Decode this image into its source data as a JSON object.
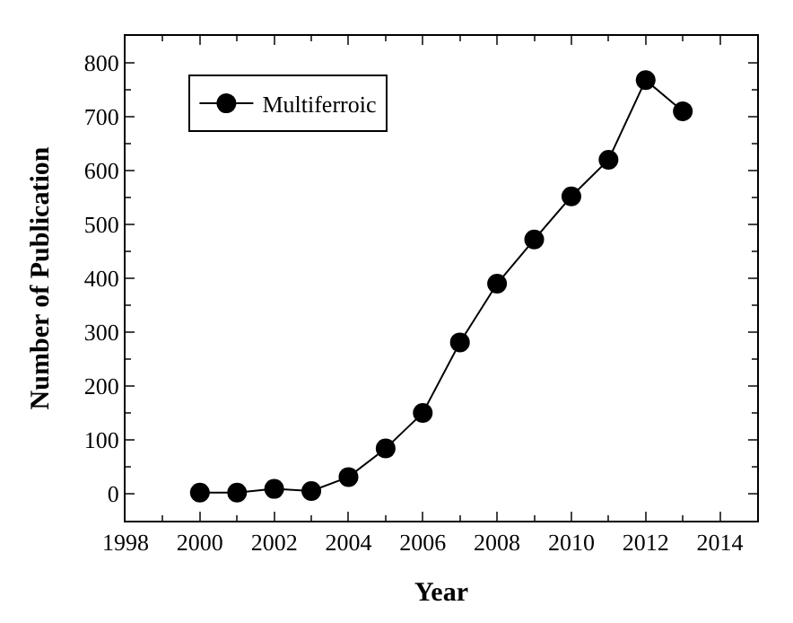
{
  "chart_data": {
    "type": "line",
    "xlabel": "Year",
    "ylabel": "Number of Publication",
    "x": [
      2000,
      2001,
      2002,
      2003,
      2004,
      2005,
      2006,
      2007,
      2008,
      2009,
      2010,
      2011,
      2012,
      2013
    ],
    "series": [
      {
        "name": "Multiferroic",
        "color": "#000000",
        "values": [
          2,
          2,
          9,
          5,
          31,
          84,
          150,
          281,
          390,
          472,
          552,
          620,
          768,
          710
        ]
      }
    ],
    "xlim": [
      1998,
      2015
    ],
    "xticks": [
      1998,
      2000,
      2002,
      2004,
      2006,
      2008,
      2010,
      2012,
      2014
    ],
    "ylim": [
      -50,
      850
    ],
    "yticks": [
      0,
      100,
      200,
      300,
      400,
      500,
      600,
      700,
      800
    ],
    "legend": "top left",
    "marker": "circle",
    "line_style": "solid"
  }
}
